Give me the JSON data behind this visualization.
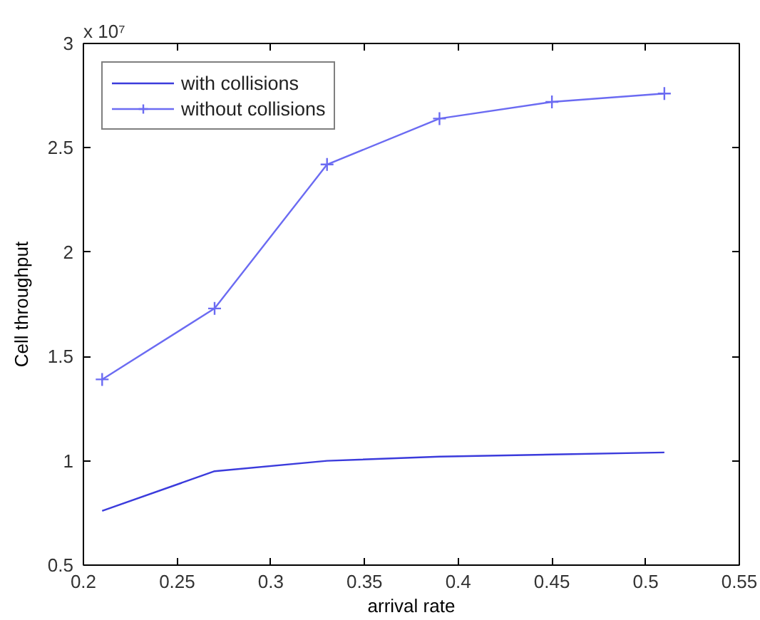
{
  "chart_data": {
    "type": "line",
    "xlabel": "arrival rate",
    "ylabel": "Cell throughput",
    "annotations": [
      "x 10⁷"
    ],
    "x": [
      0.21,
      0.27,
      0.33,
      0.39,
      0.45,
      0.51
    ],
    "series": [
      {
        "name": "with collisions",
        "color": "#3b3bdc",
        "values": [
          0.76,
          0.95,
          1.0,
          1.02,
          1.03,
          1.04
        ]
      },
      {
        "name": "without collisions",
        "color": "#6b6bf2",
        "marker": "cross",
        "values": [
          1.39,
          1.73,
          2.42,
          2.64,
          2.72,
          2.76
        ]
      }
    ],
    "xlim": [
      0.2,
      0.55
    ],
    "xticks": [
      0.2,
      0.25,
      0.3,
      0.35,
      0.4,
      0.45,
      0.5,
      0.55
    ],
    "ylim": [
      0.5,
      3
    ],
    "yticks": [
      0.5,
      1,
      1.5,
      2,
      2.5,
      3
    ],
    "legend": "top left"
  }
}
